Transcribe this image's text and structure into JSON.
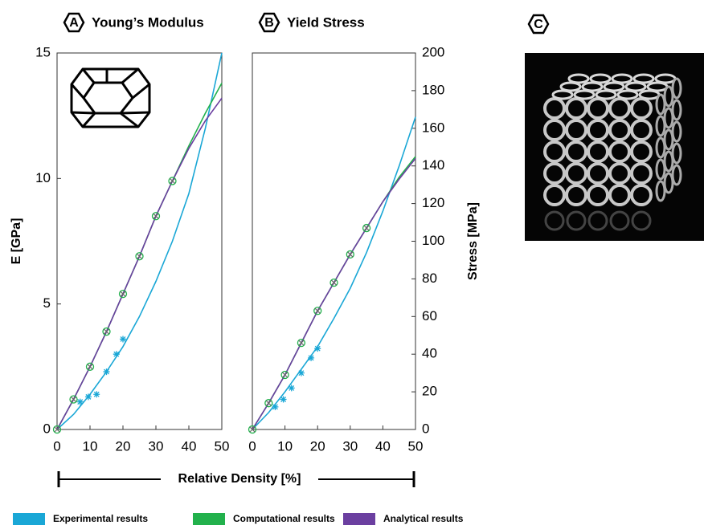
{
  "chart_data": [
    {
      "type": "line",
      "panel": "A",
      "title": "Young’s Modulus",
      "ylabel": "E [GPa]",
      "yaxis_side": "left",
      "xlim": [
        0,
        50
      ],
      "xticks": [
        0,
        10,
        20,
        30,
        40,
        50
      ],
      "ylim": [
        0,
        15
      ],
      "yticks": [
        0,
        5,
        10,
        15
      ],
      "series": [
        {
          "name": "Experimental results",
          "color": "#1aa7d6",
          "marker": "asterisk",
          "x": [
            0,
            5,
            10,
            15,
            20,
            25,
            30,
            35,
            40,
            45,
            50
          ],
          "values": [
            0,
            0.6,
            1.4,
            2.3,
            3.3,
            4.5,
            5.9,
            7.5,
            9.4,
            12.0,
            15.0
          ],
          "points": {
            "x": [
              7,
              9.5,
              12,
              15,
              18,
              20
            ],
            "values": [
              1.1,
              1.3,
              1.4,
              2.3,
              3.0,
              3.6
            ]
          }
        },
        {
          "name": "Computational results",
          "color": "#22b14c",
          "marker": "circle",
          "x": [
            0,
            5,
            10,
            15,
            20,
            25,
            30,
            35,
            40,
            45,
            50
          ],
          "values": [
            0,
            1.2,
            2.5,
            3.9,
            5.4,
            6.9,
            8.5,
            9.9,
            11.3,
            12.6,
            13.8
          ],
          "points": {
            "x": [
              0,
              5,
              10,
              15,
              20,
              25,
              30,
              35
            ],
            "values": [
              0,
              1.2,
              2.5,
              3.9,
              5.4,
              6.9,
              8.5,
              9.9
            ]
          }
        },
        {
          "name": "Analytical results",
          "color": "#6b3fa0",
          "marker": "cross",
          "x": [
            0,
            5,
            10,
            15,
            20,
            25,
            30,
            35,
            40,
            45,
            50
          ],
          "values": [
            0,
            1.2,
            2.5,
            3.9,
            5.4,
            6.9,
            8.5,
            9.9,
            11.2,
            12.3,
            13.2
          ],
          "points": {
            "x": [
              0,
              5,
              10,
              15,
              20,
              25,
              30,
              35
            ],
            "values": [
              0,
              1.2,
              2.5,
              3.9,
              5.4,
              6.9,
              8.5,
              9.9
            ]
          }
        }
      ]
    },
    {
      "type": "line",
      "panel": "B",
      "title": "Yield Stress",
      "ylabel": "Stress [MPa]",
      "yaxis_side": "right",
      "xlim": [
        0,
        50
      ],
      "xticks": [
        0,
        10,
        20,
        30,
        40,
        50
      ],
      "ylim": [
        0,
        200
      ],
      "yticks": [
        0,
        20,
        40,
        60,
        80,
        100,
        120,
        140,
        160,
        180,
        200
      ],
      "series": [
        {
          "color": "#1aa7d6",
          "marker": "asterisk",
          "x": [
            0,
            5,
            10,
            15,
            20,
            25,
            30,
            35,
            40,
            45,
            50
          ],
          "values": [
            0,
            9,
            20,
            32,
            44,
            59,
            75,
            94,
            116,
            140,
            166
          ],
          "points": {
            "x": [
              7,
              9.5,
              12,
              15,
              18,
              20
            ],
            "values": [
              12,
              16,
              22,
              30,
              38,
              43
            ]
          }
        },
        {
          "color": "#22b14c",
          "marker": "circle",
          "x": [
            0,
            5,
            10,
            15,
            20,
            25,
            30,
            35,
            40,
            45,
            50
          ],
          "values": [
            0,
            14,
            29,
            46,
            63,
            78,
            93,
            107,
            121,
            134,
            145
          ],
          "points": {
            "x": [
              0,
              5,
              10,
              15,
              20,
              25,
              30,
              35
            ],
            "values": [
              0,
              14,
              29,
              46,
              63,
              78,
              93,
              107
            ]
          }
        },
        {
          "color": "#6b3fa0",
          "marker": "cross",
          "x": [
            0,
            5,
            10,
            15,
            20,
            25,
            30,
            35,
            40,
            45,
            50
          ],
          "values": [
            0,
            14,
            29,
            46,
            63,
            78,
            93,
            107,
            121,
            133,
            144
          ],
          "points": {
            "x": [
              0,
              5,
              10,
              15,
              20,
              25,
              30,
              35
            ],
            "values": [
              0,
              14,
              29,
              46,
              63,
              78,
              93,
              107
            ]
          }
        }
      ]
    }
  ],
  "shared_xlabel": "Relative Density [%]",
  "panel_c": {
    "label": "C"
  }
}
